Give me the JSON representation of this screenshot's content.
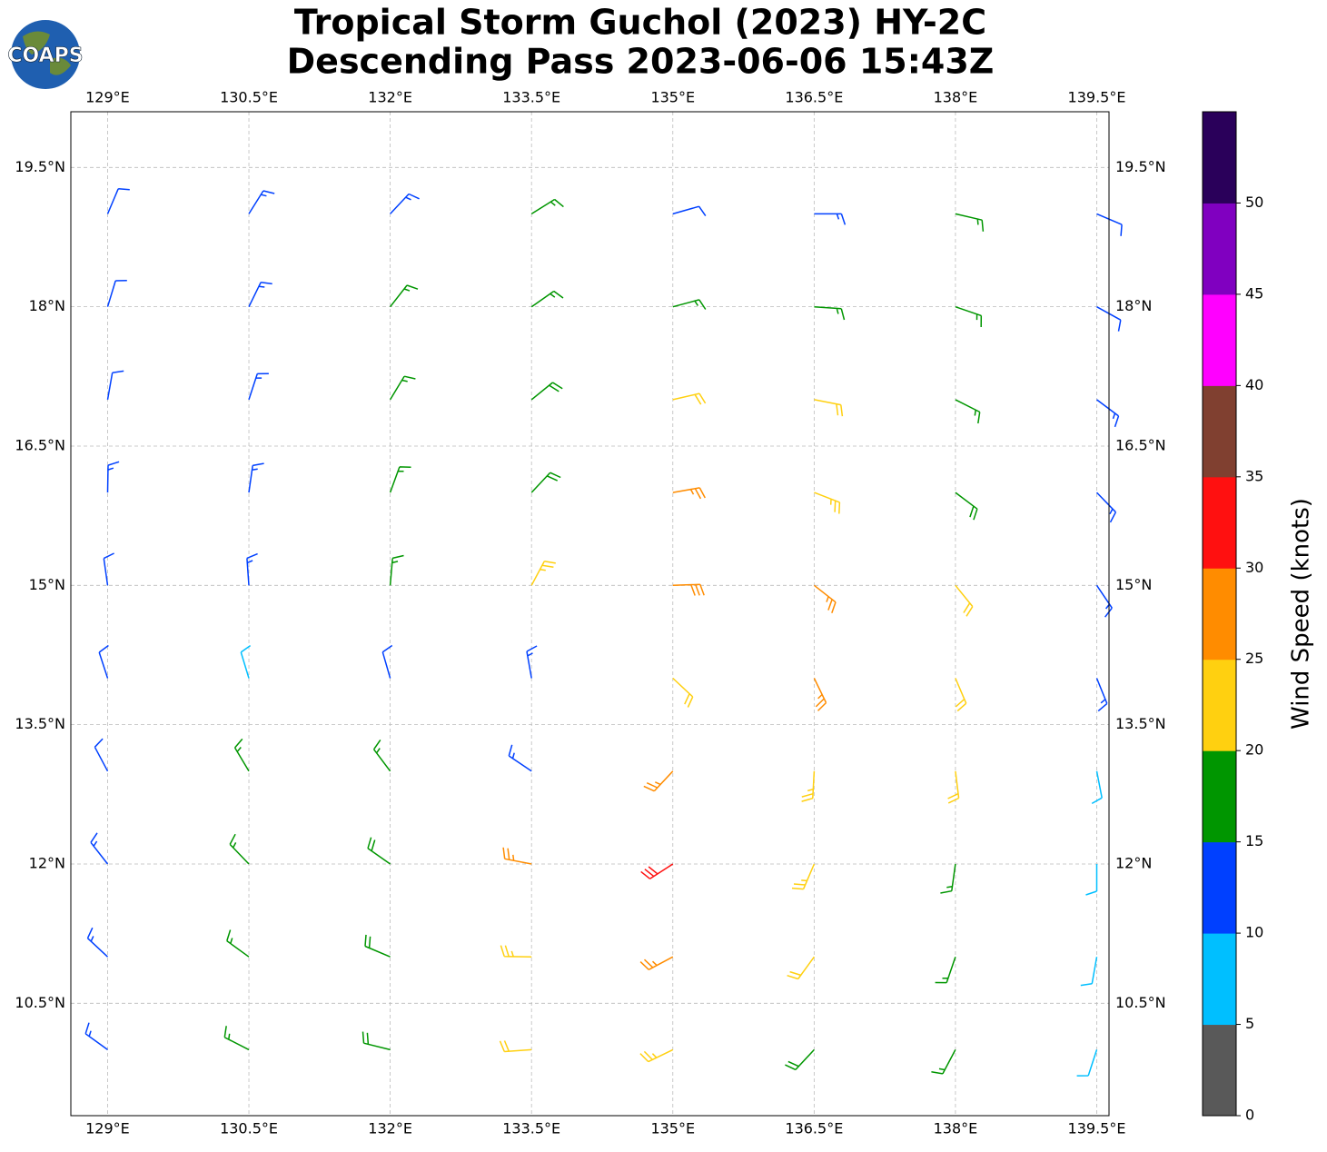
{
  "chart_data": {
    "type": "wind-barbs",
    "title": "Tropical Storm Guchol (2023) HY-2C",
    "subtitle": "Descending Pass 2023-06-06 15:43Z",
    "logo": "COAPS",
    "xlim": [
      128.61,
      139.63
    ],
    "ylim": [
      9.29,
      20.1
    ],
    "xticks": [
      {
        "value": 129,
        "label": "129°E"
      },
      {
        "value": 130.5,
        "label": "130.5°E"
      },
      {
        "value": 132,
        "label": "132°E"
      },
      {
        "value": 133.5,
        "label": "133.5°E"
      },
      {
        "value": 135,
        "label": "135°E"
      },
      {
        "value": 136.5,
        "label": "136.5°E"
      },
      {
        "value": 138,
        "label": "138°E"
      },
      {
        "value": 139.5,
        "label": "139.5°E"
      }
    ],
    "yticks": [
      {
        "value": 10.5,
        "label": "10.5°N"
      },
      {
        "value": 12,
        "label": "12°N"
      },
      {
        "value": 13.5,
        "label": "13.5°N"
      },
      {
        "value": 15,
        "label": "15°N"
      },
      {
        "value": 16.5,
        "label": "16.5°N"
      },
      {
        "value": 18,
        "label": "18°N"
      },
      {
        "value": 19.5,
        "label": "19.5°N"
      }
    ],
    "grid": true,
    "lon": [
      129,
      130.5,
      132,
      133.5,
      135,
      136.5,
      138,
      139.5
    ],
    "lat": [
      19,
      18,
      17,
      16,
      15,
      14,
      13,
      12,
      11,
      10
    ],
    "speed": [
      [
        12,
        13,
        14,
        17,
        12,
        14,
        16,
        12
      ],
      [
        12,
        13,
        17,
        17,
        16,
        17,
        15,
        12
      ],
      [
        12,
        13,
        17,
        18,
        22,
        22,
        17,
        13
      ],
      [
        13,
        14,
        17,
        19,
        27,
        24,
        19,
        14
      ],
      [
        12,
        13,
        16,
        24,
        29,
        27,
        22,
        14
      ],
      [
        12,
        8,
        12,
        14,
        21,
        27,
        22,
        13
      ],
      [
        12,
        16,
        17,
        14,
        27,
        23,
        20,
        8
      ],
      [
        13,
        17,
        19,
        26,
        32,
        23,
        17,
        8
      ],
      [
        13,
        15,
        19,
        23,
        27,
        22,
        17,
        8
      ],
      [
        13,
        15,
        19,
        22,
        23,
        19,
        16,
        8
      ]
    ],
    "direction": [
      [
        23,
        32,
        43,
        58,
        74,
        90,
        103,
        113
      ],
      [
        17,
        26,
        38,
        55,
        75,
        94,
        109,
        119
      ],
      [
        10,
        18,
        31,
        51,
        77,
        101,
        117,
        127
      ],
      [
        1,
        8,
        20,
        43,
        80,
        111,
        127,
        136
      ],
      [
        352,
        356,
        5,
        28,
        88,
        128,
        141,
        146
      ],
      [
        342,
        343,
        344,
        350,
        133,
        154,
        157,
        158
      ],
      [
        332,
        329,
        323,
        304,
        223,
        183,
        173,
        169
      ],
      [
        322,
        316,
        305,
        281,
        237,
        203,
        188,
        180
      ],
      [
        313,
        306,
        293,
        271,
        242,
        216,
        199,
        190
      ],
      [
        306,
        297,
        284,
        266,
        244,
        223,
        208,
        198
      ]
    ],
    "colorbar": {
      "label": "Wind Speed (knots)",
      "ylim": [
        0,
        55
      ],
      "bounds": [
        0,
        5,
        10,
        15,
        20,
        25,
        30,
        35,
        40,
        45,
        50,
        55
      ],
      "colors": [
        "#595959",
        "#00bfff",
        "#0040ff",
        "#009600",
        "#ffd010",
        "#ff8c00",
        "#ff1010",
        "#804030",
        "#ff00ff",
        "#8000c0",
        "#2a005a"
      ],
      "yticks": [
        0,
        5,
        10,
        15,
        20,
        25,
        30,
        35,
        40,
        45,
        50
      ]
    }
  }
}
